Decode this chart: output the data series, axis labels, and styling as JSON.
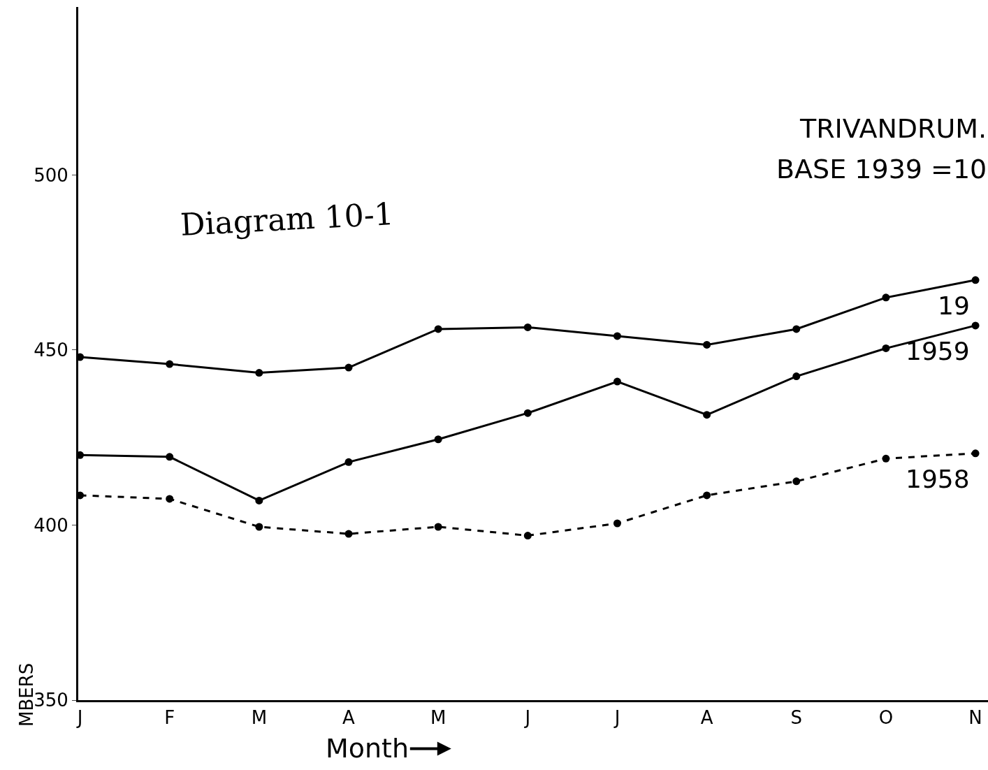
{
  "chart_data": {
    "type": "line",
    "title": "TRIVANDRUM.",
    "subtitle": "BASE 1939 =10",
    "xlabel": "Month",
    "ylabel": "MBERS",
    "annotations": [
      "Diagram 10-1"
    ],
    "categories": [
      "J",
      "F",
      "M",
      "A",
      "M",
      "J",
      "J",
      "A",
      "S",
      "O",
      "N"
    ],
    "series": [
      {
        "name": "19",
        "color": "#000000",
        "line_style": "solid",
        "values": [
          448,
          446,
          443.5,
          445,
          456,
          456.5,
          454,
          451.5,
          456,
          465,
          470
        ]
      },
      {
        "name": "1959",
        "color": "#000000",
        "line_style": "solid",
        "values": [
          420,
          419.5,
          407,
          418,
          424.5,
          432,
          441,
          431.5,
          442.5,
          450.5,
          457
        ]
      },
      {
        "name": "1958",
        "color": "#000000",
        "line_style": "dashed",
        "values": [
          408.5,
          407.5,
          399.5,
          397.5,
          399.5,
          397,
          400.5,
          408.5,
          412.5,
          419,
          420.5
        ]
      }
    ],
    "ylim": [
      350,
      548
    ],
    "yticks": [
      350,
      400,
      450,
      500
    ],
    "legend": false,
    "marker": "circle"
  }
}
